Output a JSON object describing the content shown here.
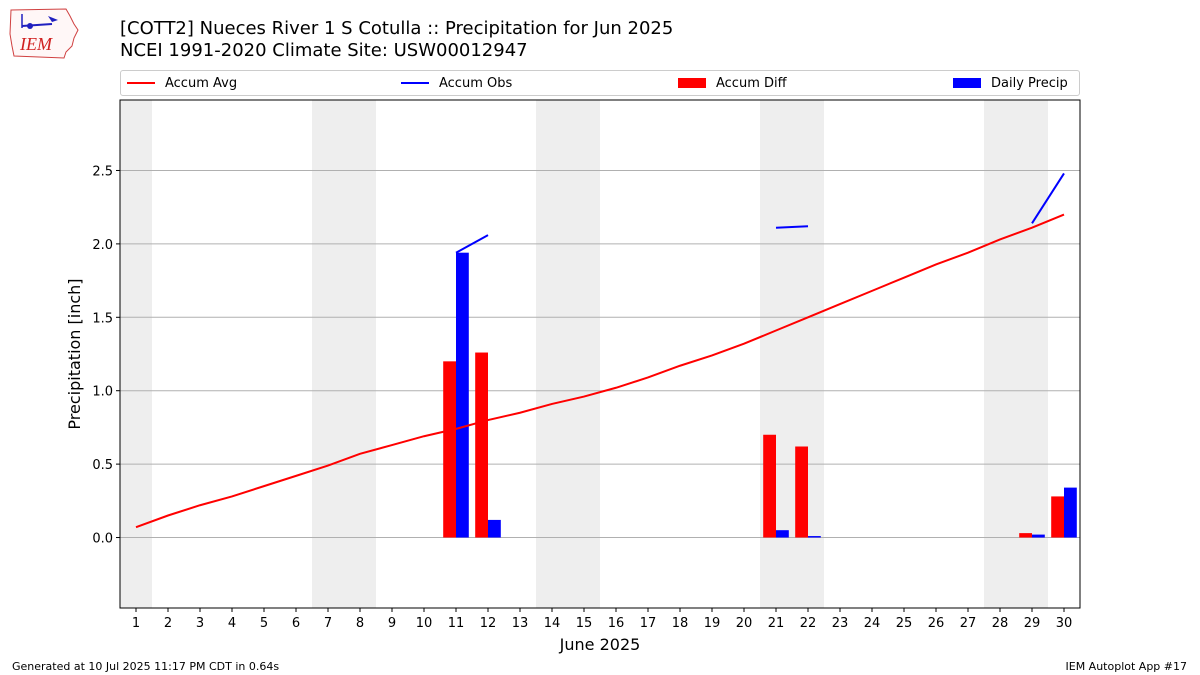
{
  "header": {
    "title": "[COTT2] Nueces River 1 S Cotulla :: Precipitation for Jun 2025",
    "subtitle": "NCEI 1991-2020 Climate Site: USW00012947"
  },
  "logo": {
    "text": "IEM",
    "icon": "iem-iowa-map-logo"
  },
  "footer": {
    "generated": "Generated at 10 Jul 2025 11:17 PM CDT in 0.64s",
    "app": "IEM Autoplot App #17"
  },
  "chart_data": {
    "type": "bar",
    "xlabel": "June 2025",
    "ylabel": "Precipitation [inch]",
    "x": [
      1,
      2,
      3,
      4,
      5,
      6,
      7,
      8,
      9,
      10,
      11,
      12,
      13,
      14,
      15,
      16,
      17,
      18,
      19,
      20,
      21,
      22,
      23,
      24,
      25,
      26,
      27,
      28,
      29,
      30
    ],
    "xlim": [
      0.5,
      30.5
    ],
    "ylim": [
      -0.48,
      2.98
    ],
    "yticks": [
      0.0,
      0.5,
      1.0,
      1.5,
      2.0,
      2.5
    ],
    "ytick_labels": [
      "0.0",
      "0.5",
      "1.0",
      "1.5",
      "2.0",
      "2.5"
    ],
    "grid": "horizontal",
    "legend_placement": "top",
    "weekend_shading": [
      [
        1,
        1
      ],
      [
        7,
        8
      ],
      [
        14,
        15
      ],
      [
        21,
        22
      ],
      [
        28,
        29
      ]
    ],
    "series": [
      {
        "name": "Accum Avg",
        "kind": "line",
        "color": "#ff0000",
        "values": [
          0.07,
          0.15,
          0.22,
          0.28,
          0.35,
          0.42,
          0.49,
          0.57,
          0.63,
          0.69,
          0.74,
          0.8,
          0.85,
          0.91,
          0.96,
          1.02,
          1.09,
          1.17,
          1.24,
          1.32,
          1.41,
          1.5,
          1.59,
          1.68,
          1.77,
          1.86,
          1.94,
          2.03,
          2.11,
          2.2
        ]
      },
      {
        "name": "Accum Obs",
        "kind": "line",
        "color": "#0000ff",
        "segments": [
          {
            "x": [
              11,
              12
            ],
            "y": [
              1.94,
              2.06
            ]
          },
          {
            "x": [
              21,
              22
            ],
            "y": [
              2.11,
              2.12
            ]
          },
          {
            "x": [
              29,
              30
            ],
            "y": [
              2.14,
              2.48
            ]
          }
        ]
      },
      {
        "name": "Accum Diff",
        "kind": "bar",
        "color": "#ff0000",
        "points": [
          {
            "x": 11,
            "y": 1.2
          },
          {
            "x": 12,
            "y": 1.26
          },
          {
            "x": 21,
            "y": 0.7
          },
          {
            "x": 22,
            "y": 0.62
          },
          {
            "x": 29,
            "y": 0.03
          },
          {
            "x": 30,
            "y": 0.28
          }
        ]
      },
      {
        "name": "Daily Precip",
        "kind": "bar",
        "color": "#0000ff",
        "points": [
          {
            "x": 11,
            "y": 1.94
          },
          {
            "x": 12,
            "y": 0.12
          },
          {
            "x": 21,
            "y": 0.05
          },
          {
            "x": 22,
            "y": 0.01
          },
          {
            "x": 29,
            "y": 0.02
          },
          {
            "x": 30,
            "y": 0.34
          }
        ]
      }
    ]
  }
}
